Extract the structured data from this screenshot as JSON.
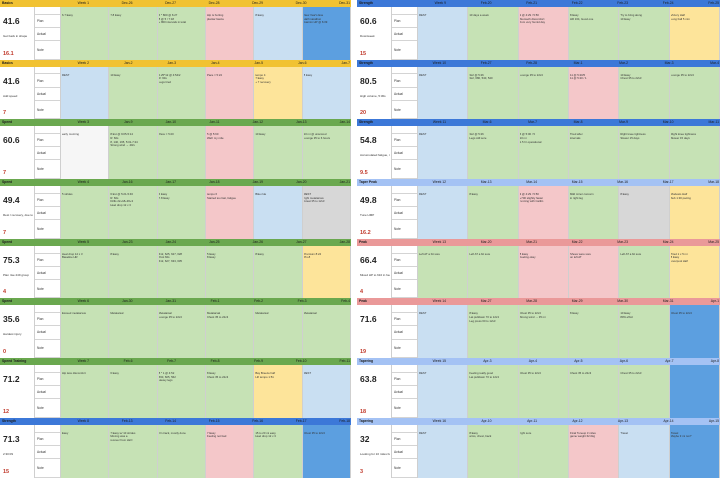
{
  "sheets": [
    {
      "id": "left",
      "weeks": [
        {
          "phase": "Basics",
          "week": "Week 1",
          "dates": [
            "Dec-26",
            "Dec-27",
            "Dec-28",
            "Dec-29",
            "Dec-30",
            "Dec-31"
          ],
          "mileage": "41.6",
          "summary": "Get back in shape",
          "tally": "16.1",
          "rows": [
            "Plan",
            "Actual",
            "Note"
          ],
          "cells": [
            [
              "",
              "6.7 Easy"
            ],
            [
              "",
              "7.8 Easy"
            ],
            [
              "6 * 800 @ 6:27",
              "8 @ 5 / 7:18",
              "+ 800 intervals in total"
            ],
            [
              "",
              "Hip is hurting",
              "plantar fascia"
            ],
            [
              "",
              "8 Easy"
            ],
            [
              "New Year's Eve",
              "Half marathon",
              "Garmin HP @ 6:39"
            ]
          ],
          "colors": [
            "c-green",
            "c-green",
            "c-green",
            "c-pink",
            "c-blue",
            "c-strongblue"
          ]
        },
        {
          "phase": "Basics",
          "week": "Week 2",
          "dates": [
            "Jan-2",
            "Jan-3",
            "Jan-4",
            "Jan-5",
            "Jan-6",
            "Jan-7"
          ],
          "mileage": "41.6",
          "summary": "Add speed",
          "tally": "7",
          "rows": [
            "Plan",
            "Actual",
            "Note"
          ],
          "cells": [
            [
              "",
              "REST"
            ],
            [
              "",
              "10 Easy"
            ],
            [
              "0.25*12 @ 4:54/2",
              "R: 60s",
              "Legs tired"
            ],
            [
              "",
              "Pace = 5:24"
            ],
            [
              "tempo 4",
              "7 Easy",
              "+ 7 recovery"
            ],
            [
              "",
              "8 Easy"
            ]
          ],
          "colors": [
            "c-blue",
            "c-green",
            "c-green",
            "c-pink",
            "c-yellow",
            "c-blue"
          ]
        },
        {
          "phase": "Speed",
          "week": "Week 3",
          "dates": [
            "Jan-9",
            "Jan-10",
            "Jan-11",
            "Jan-12",
            "Jan-13",
            "Jan-14"
          ],
          "mileage": "60.6",
          "summary": "",
          "tally": "7",
          "rows": [
            "Plan",
            "Actual",
            "Note"
          ],
          "cells": [
            [
              "",
              "early morning"
            ],
            [
              "8 Ext @ 9:05-5:14",
              "R: 60s",
              "8, 140, 165, 5:01-7:24",
              "Strong wind → 40/s"
            ],
            [
              "",
              "Pace = 5:20"
            ],
            [
              "5 @ 5:60",
              "Wall: my mile"
            ],
            [
              "",
              "10 Easy"
            ],
            [
              "10 mi @ unscored",
              "",
              "Lounge 35 to 6 hours"
            ]
          ],
          "colors": [
            "c-white",
            "c-green",
            "c-green",
            "c-pink",
            "c-green",
            "c-green"
          ]
        },
        {
          "phase": "Speed",
          "week": "Week 4",
          "dates": [
            "Jan-16",
            "Jan-17",
            "Jan-18",
            "Jan-19",
            "Jan-20",
            "Jan-21"
          ],
          "mileage": "49.4",
          "summary": "Rest / recovery, due to metatarsus",
          "tally": "7",
          "rows": [
            "Plan",
            "Actual",
            "Note"
          ],
          "cells": [
            [
              "",
              "5 strides"
            ],
            [
              "6 Ext @ 5:21-5:46",
              "R: 60s",
              "Drills 22+18+36+3",
              "Heel drop 12 x 3"
            ],
            [
              "6 Easy",
              "7.8 Easy"
            ],
            [
              "tempo 6",
              "Started too fast, fatigue"
            ],
            [
              "",
              "Bike ride"
            ],
            [
              "REST",
              "right metatarsus",
              "Great 35 to 12x3"
            ]
          ],
          "colors": [
            "c-green",
            "c-green",
            "c-green",
            "c-pink",
            "c-blue",
            "c-gray"
          ]
        },
        {
          "phase": "Speed",
          "week": "Week 5",
          "dates": [
            "Jan-23",
            "Jan-24",
            "Jan-25",
            "Jan-26",
            "Jan-27",
            "Jan-28"
          ],
          "mileage": "75.3",
          "summary": "Plan rise 249 group",
          "tally": "4",
          "rows": [
            "Plan",
            "Actual",
            "Note"
          ],
          "cells": [
            [
              "",
              "Heel drop 12 x 3",
              "Baseline HR"
            ],
            [
              "8 Easy"
            ],
            [
              "612, 625, 627, 628",
              "Post 60s",
              "612, 627, 633, 635"
            ],
            [
              "5 Easy",
              "8 Easy"
            ],
            [
              "",
              "8 Easy"
            ],
            [
              "Premium 8:24",
              "Pin-8"
            ]
          ],
          "colors": [
            "c-green",
            "c-green",
            "c-green",
            "c-green",
            "c-green",
            "c-yellow"
          ]
        },
        {
          "phase": "Speed",
          "week": "Week 6",
          "dates": [
            "Jan-30",
            "Jan-31",
            "Feb-1",
            "Feb-2",
            "Feb-3",
            "Feb-4"
          ],
          "mileage": "35.6",
          "summary": "Hardest injury",
          "tally": "0",
          "rows": [
            "Plan",
            "Actual",
            "Note"
          ],
          "cells": [
            [
              "",
              "Exceed metatarsus"
            ],
            [
              "",
              "Metatarsal"
            ],
            [
              "",
              "Metatarsal",
              "Lounge 35 to 22x3"
            ],
            [
              "",
              "Metatarsal",
              "Chest 35 to 22x3"
            ],
            [
              "",
              "Metatarsal"
            ],
            [
              "",
              "Metatarsal"
            ]
          ],
          "colors": [
            "c-green",
            "c-green",
            "c-green",
            "c-green",
            "c-green",
            "c-green"
          ]
        },
        {
          "phase": "Speed Training",
          "week": "Week 7",
          "dates": [
            "Feb-6",
            "Feb-7",
            "Feb-8",
            "Feb-9",
            "Feb-10",
            "Feb-11"
          ],
          "mileage": "71.2",
          "summary": "",
          "tally": "12",
          "rows": [
            "Plan",
            "Actual",
            "Note"
          ],
          "cells": [
            [
              "",
              "Hip less discomfort"
            ],
            [
              "",
              "6 Easy"
            ],
            [
              "8 * 1 @ 4:52",
              "560, 605, 562",
              "Heavy legs"
            ],
            [
              "",
              "8 Easy",
              "Chest 35 to 22x3"
            ],
            [
              "Bay Breeze half",
              "",
              "Lift tempo 1:51"
            ],
            [
              "REST"
            ]
          ],
          "colors": [
            "c-green",
            "c-green",
            "c-green",
            "c-green",
            "c-yellow",
            "c-blue"
          ]
        },
        {
          "phase": "Strength",
          "week": "Week 8",
          "dates": [
            "Feb-13",
            "Feb-14",
            "Feb-15",
            "Feb-16",
            "Feb-17",
            "Feb-18"
          ],
          "mileage": "71.3",
          "summary": "2:30:09",
          "tally": "15",
          "rows": [
            "Plan",
            "Actual",
            "Note"
          ],
          "cells": [
            [
              "",
              "Easy"
            ],
            [
              "7 Easy w/ 10 strides",
              "Moving was a",
              "recover from LEO"
            ],
            [
              "",
              "On track, mostly done"
            ],
            [
              "7 Easy",
              "Feeling not bad"
            ],
            [
              "15 to 20 mi easy",
              "Heel drop 12 x 3"
            ],
            [
              "",
              "Chest 35 to 22x3"
            ]
          ],
          "colors": [
            "c-green",
            "c-green",
            "c-green",
            "c-pink",
            "c-green",
            "c-strongblue"
          ]
        }
      ]
    },
    {
      "id": "right",
      "weeks": [
        {
          "phase": "Strength",
          "week": "Week 9",
          "dates": [
            "Feb-20",
            "Feb-21",
            "Feb-22",
            "Feb-23",
            "Feb-24",
            "Feb-25"
          ],
          "mileage": "60.6",
          "summary": "Downweek",
          "tally": "15",
          "rows": [
            "Plan",
            "Actual",
            "Note"
          ],
          "cells": [
            [
              "",
              "REST"
            ],
            [
              "",
              "10 days a week"
            ],
            [
              "2 @ 4:29 / 5:50",
              "Stomach discomfort",
              "from very humid day"
            ],
            [
              "8 Easy",
              "HR 164, Good one"
            ],
            [
              "Try to bring along",
              "10 Easy"
            ],
            [
              "Victory Half",
              "Long Fall 5 min"
            ]
          ],
          "colors": [
            "c-blue",
            "c-green",
            "c-pink",
            "c-green",
            "c-green",
            "c-yellow"
          ]
        },
        {
          "phase": "Strength",
          "week": "Week 10",
          "dates": [
            "Feb-27",
            "Feb-28",
            "Mar-1",
            "Mar-2",
            "Mar-3",
            "Mar-4"
          ],
          "mileage": "80.5",
          "summary": "High volume, 5:30s",
          "tally": "20",
          "rows": [
            "Plan",
            "Actual",
            "Note"
          ],
          "cells": [
            [
              "",
              "REST"
            ],
            [
              "3x2 @ 5:26",
              "3x2, 680, 540, 540"
            ],
            [
              "",
              "Lounge 35 to 22x3"
            ],
            [
              "11 @ 5:20/5",
              "11 @ 5:20 / 1"
            ],
            [
              "",
              "10 Easy",
              "Chest 35 to 22x3"
            ],
            [
              "",
              "Lounge 35 to 22x3"
            ]
          ],
          "colors": [
            "c-blue",
            "c-green",
            "c-green",
            "c-pink",
            "c-green",
            "c-green"
          ]
        },
        {
          "phase": "Strength",
          "week": "Week 11",
          "dates": [
            "Mar-6",
            "Mar-7",
            "Mar-8",
            "Mar-9",
            "Mar-10",
            "Mar-11"
          ],
          "mileage": "54.8",
          "summary": "Accumulated fatigue, missed training",
          "tally": "9.5",
          "rows": [
            "Plan",
            "Actual",
            "Note"
          ],
          "cells": [
            [
              "",
              "REST"
            ],
            [
              "3x2 @ 5:26",
              "Legs still sore"
            ],
            [
              "5 @ 5:00 / 5",
              "10 mi",
              "1.5 hr operational"
            ],
            [
              "",
              "Tired after",
              "intervals"
            ],
            [
              "Right knee tightness",
              "Slower 15 days"
            ],
            [
              "Right knee tightness",
              "Slower 15 days"
            ]
          ],
          "colors": [
            "c-blue",
            "c-green",
            "c-green",
            "c-green",
            "c-green",
            "c-green"
          ]
        },
        {
          "phase": "Taper Peak",
          "week": "Week 12",
          "dates": [
            "Mar-13",
            "Mar-14",
            "Mar-15",
            "Mar-16",
            "Mar-17",
            "Mar-18"
          ],
          "mileage": "49.8",
          "summary": "Tune HMP",
          "tally": "16.2",
          "rows": [
            "Plan",
            "Actual",
            "Note"
          ],
          "cells": [
            [
              "",
              "REST"
            ],
            [
              "",
              "8 Easy"
            ],
            [
              "3 @ 4:29 / 5:50",
              "+700 slightly faster",
              "running with Caitlin"
            ],
            [
              "",
              "Mild minor concern",
              "in right leg"
            ],
            [
              "",
              "8 Easy"
            ],
            [
              "Modesto Half",
              "Sub 1:30 pacing"
            ]
          ],
          "colors": [
            "c-blue",
            "c-green",
            "c-pink",
            "c-green",
            "c-gray",
            "c-yellow"
          ]
        },
        {
          "phase": "Peak",
          "week": "Week 13",
          "dates": [
            "Mar-20",
            "Mar-21",
            "Mar-22",
            "Mar-23",
            "Mar-24",
            "Mar-25"
          ],
          "mileage": "66.4",
          "summary": "Mixed HP to 610 in heat, 2 hr",
          "tally": "4",
          "rows": [
            "Plan",
            "Actual",
            "Note"
          ],
          "cells": [
            [
              "",
              "Left AT a bit sore"
            ],
            [
              "",
              "Left AT a bit sore"
            ],
            [
              "8 Easy",
              "Feeling okay"
            ],
            [
              "",
              "Shoes were sore",
              "on left AT"
            ],
            [
              "",
              "Left AT a bit sore"
            ],
            [
              "Tired 1 x 5 mi",
              "8 Easy",
              "Liverpool Half"
            ]
          ],
          "colors": [
            "c-green",
            "c-green",
            "c-pink",
            "c-pink",
            "c-green",
            "c-yellow"
          ]
        },
        {
          "phase": "Peak",
          "week": "Week 14",
          "dates": [
            "Mar-27",
            "Mar-28",
            "Mar-29",
            "Mar-30",
            "Mar-31",
            "Apr-1"
          ],
          "mileage": "71.6",
          "summary": "",
          "tally": "19",
          "rows": [
            "Plan",
            "Actual",
            "Note"
          ],
          "cells": [
            [
              "",
              "REST"
            ],
            [
              "",
              "8 Easy",
              "Lat pulldown 70 to 12x3",
              "Leg press 60 to 12x3"
            ],
            [
              "",
              "Chest 35 to 22x3",
              "Strong wind → 35 mi"
            ],
            [
              "",
              "8 Easy"
            ],
            [
              "",
              "10 Easy",
              "80% effort"
            ],
            [
              "",
              "Chest 35 to 22x3"
            ]
          ],
          "colors": [
            "c-blue",
            "c-green",
            "c-green",
            "c-green",
            "c-green",
            "c-strongblue"
          ]
        },
        {
          "phase": "Tapering",
          "week": "Week 15",
          "dates": [
            "Apr-3",
            "Apr-4",
            "Apr-5",
            "Apr-6",
            "Apr-7",
            "Apr-8"
          ],
          "mileage": "63.8",
          "summary": "",
          "tally": "18",
          "rows": [
            "Plan",
            "Actual",
            "Note"
          ],
          "cells": [
            [
              "",
              "REST"
            ],
            [
              "",
              "Feeling really good",
              "Lat pulldown 70 to 12x3"
            ],
            [
              "",
              "Chest 35 to 22x3"
            ],
            [
              "",
              "Chest 35 to 22x3"
            ],
            [
              "",
              "Chest 35 to 22x3"
            ],
            [
              "",
              ""
            ]
          ],
          "colors": [
            "c-blue",
            "c-green",
            "c-green",
            "c-green",
            "c-green",
            "c-strongblue"
          ]
        },
        {
          "phase": "Tapering",
          "week": "Week 16",
          "dates": [
            "Apr-10",
            "Apr-11",
            "Apr-12",
            "Apr-13",
            "Apr-14",
            "Apr-15"
          ],
          "mileage": "32",
          "summary": "Looking for 10 miles but 18 in 15 days",
          "tally": "3",
          "rows": [
            "Plan",
            "Actual",
            "Note"
          ],
          "cells": [
            [
              "",
              "REST"
            ],
            [
              "",
              "8 Easy",
              "arms, chest, back"
            ],
            [
              "",
              "right sore"
            ],
            [
              "Final Tuneup 3 miles",
              "game weight 62.0kg"
            ],
            [
              "",
              "Travel"
            ],
            [
              "",
              "Travel",
              "Maybe 3 mi run?"
            ]
          ],
          "colors": [
            "c-blue",
            "c-green",
            "c-green",
            "c-pink",
            "c-blue",
            "c-strongblue"
          ]
        }
      ]
    }
  ]
}
